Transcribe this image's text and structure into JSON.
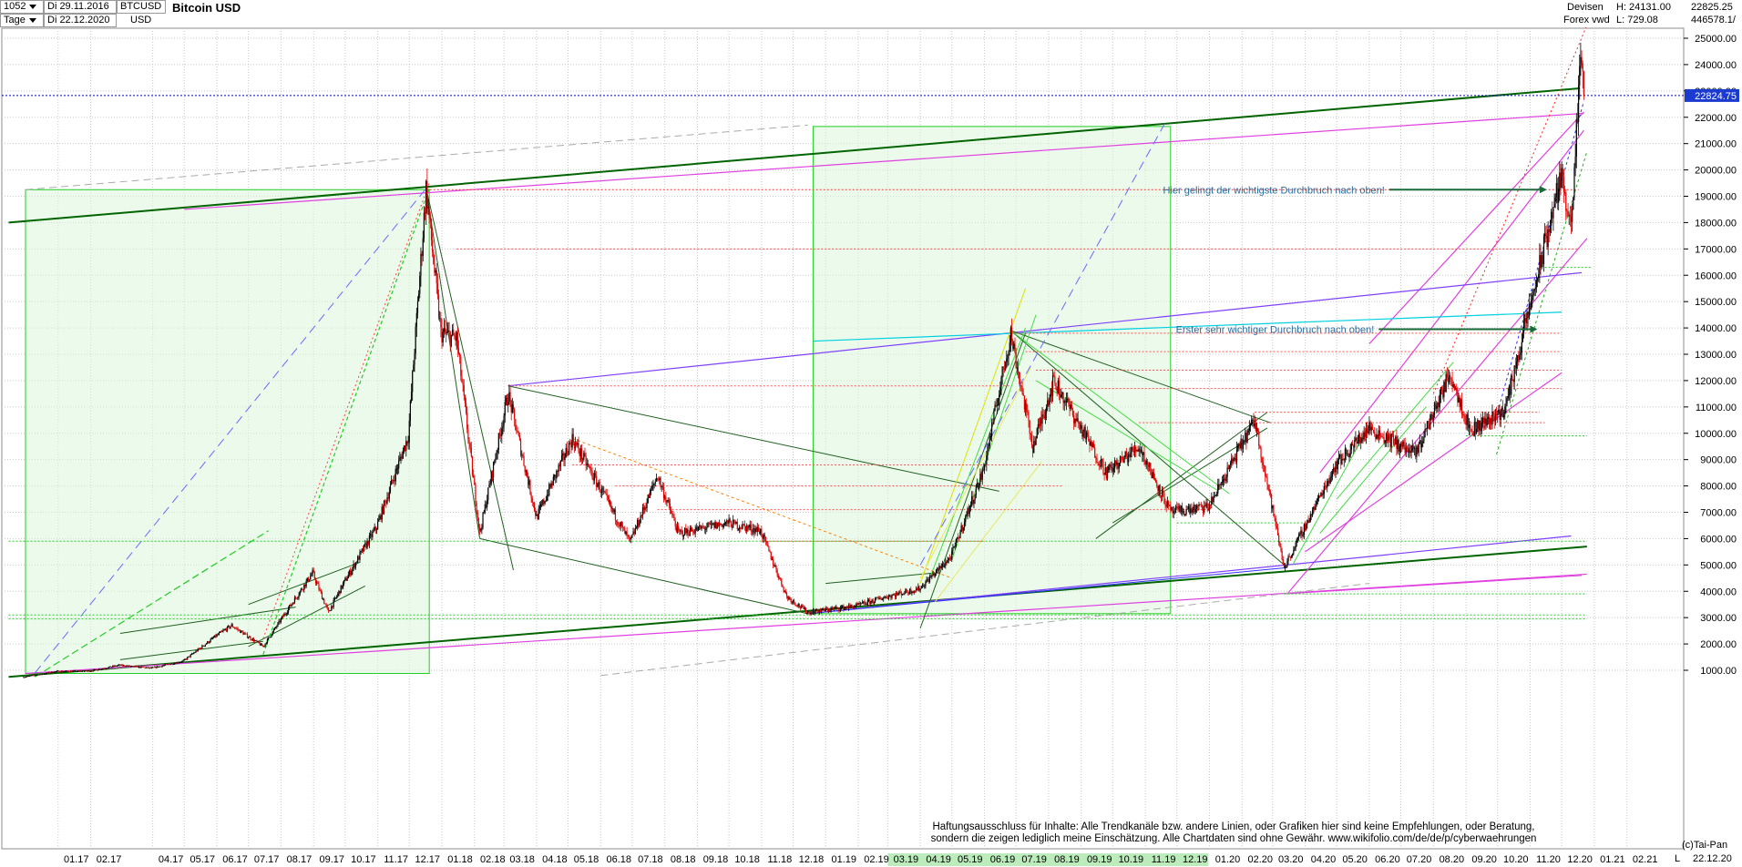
{
  "header": {
    "bars_count": "1052",
    "period": "Tage",
    "date_from": "Di 29.11.2016",
    "date_to": "Di 22.12.2020",
    "symbol": "BTCUSD",
    "currency": "USD",
    "title": "Bitcoin USD",
    "category": "Devisen",
    "exchange": "Forex vwd",
    "high": "H: 24131.00",
    "low": "L: 729.08",
    "last": "22825.25",
    "volume": "446578.1/"
  },
  "footer": {
    "copyright": "(c)Tai-Pan",
    "end_date": "22.12.20",
    "scale_mode": "L"
  },
  "colors": {
    "candle_up": "#000000",
    "candle_down": "#e00000",
    "grid": "#c8c8c8",
    "current_price_line": "#0000c8",
    "current_price_label_bg": "#1a3ad0"
  },
  "chart_data": {
    "type": "candlestick",
    "title": "Bitcoin USD",
    "x_type": "date",
    "ylim": [
      0,
      26000
    ],
    "y_scale": "linear",
    "y_axis_position": "right",
    "grid": true,
    "y_ticks": [
      "1000.00",
      "2000.00",
      "3000.00",
      "4000.00",
      "5000.00",
      "6000.00",
      "7000.00",
      "8000.00",
      "9000.00",
      "10000.00",
      "11000.00",
      "12000.00",
      "13000.00",
      "14000.00",
      "15000.00",
      "16000.00",
      "17000.00",
      "18000.00",
      "19000.00",
      "20000.00",
      "21000.00",
      "22000.00",
      "23000.00",
      "24000.00",
      "25000.00"
    ],
    "x_ticks": [
      "01.17",
      "02.17",
      "04.17",
      "05.17",
      "06.17",
      "07.17",
      "08.17",
      "09.17",
      "10.17",
      "11.17",
      "12.17",
      "01.18",
      "02.18",
      "03.18",
      "04.18",
      "05.18",
      "06.18",
      "07.18",
      "08.18",
      "09.18",
      "10.18",
      "11.18",
      "12.18",
      "01.19",
      "02.19",
      "03.19",
      "04.19",
      "05.19",
      "06.19",
      "07.19",
      "08.19",
      "09.19",
      "10.19",
      "11.19",
      "12.19",
      "01.20",
      "02.20",
      "03.20",
      "04.20",
      "05.20",
      "06.20",
      "07.20",
      "08.20",
      "09.20",
      "10.20",
      "11.20",
      "12.20",
      "01.21",
      "02.21"
    ],
    "current_price": 22824.75,
    "current_price_label": "22824.75",
    "price_path": [
      [
        "2016-11-29",
        740
      ],
      [
        "2016-12-31",
        960
      ],
      [
        "2017-01-31",
        970
      ],
      [
        "2017-02-28",
        1190
      ],
      [
        "2017-03-31",
        1080
      ],
      [
        "2017-04-30",
        1350
      ],
      [
        "2017-05-31",
        2300
      ],
      [
        "2017-06-15",
        2700
      ],
      [
        "2017-07-15",
        1900
      ],
      [
        "2017-07-31",
        2870
      ],
      [
        "2017-08-31",
        4700
      ],
      [
        "2017-09-15",
        3200
      ],
      [
        "2017-09-30",
        4340
      ],
      [
        "2017-10-31",
        6450
      ],
      [
        "2017-11-30",
        9900
      ],
      [
        "2017-12-17",
        19300
      ],
      [
        "2017-12-31",
        13800
      ],
      [
        "2018-01-15",
        13600
      ],
      [
        "2018-02-06",
        6200
      ],
      [
        "2018-03-05",
        11500
      ],
      [
        "2018-04-01",
        6800
      ],
      [
        "2018-05-05",
        9800
      ],
      [
        "2018-06-29",
        5850
      ],
      [
        "2018-07-25",
        8400
      ],
      [
        "2018-08-14",
        6200
      ],
      [
        "2018-09-30",
        6600
      ],
      [
        "2018-10-31",
        6300
      ],
      [
        "2018-11-25",
        3800
      ],
      [
        "2018-12-15",
        3200
      ],
      [
        "2019-01-31",
        3450
      ],
      [
        "2019-02-28",
        3800
      ],
      [
        "2019-03-31",
        4100
      ],
      [
        "2019-04-30",
        5300
      ],
      [
        "2019-05-31",
        8600
      ],
      [
        "2019-06-26",
        13800
      ],
      [
        "2019-07-17",
        9500
      ],
      [
        "2019-08-06",
        12000
      ],
      [
        "2019-09-25",
        8500
      ],
      [
        "2019-10-26",
        9500
      ],
      [
        "2019-11-25",
        7000
      ],
      [
        "2019-12-31",
        7200
      ],
      [
        "2020-02-13",
        10500
      ],
      [
        "2020-03-12",
        4900
      ],
      [
        "2020-03-31",
        6400
      ],
      [
        "2020-04-30",
        8800
      ],
      [
        "2020-06-01",
        10200
      ],
      [
        "2020-07-15",
        9200
      ],
      [
        "2020-08-17",
        12300
      ],
      [
        "2020-09-05",
        10100
      ],
      [
        "2020-10-08",
        10900
      ],
      [
        "2020-11-05",
        15500
      ],
      [
        "2020-11-30",
        19700
      ],
      [
        "2020-12-11",
        18000
      ],
      [
        "2020-12-17",
        23000
      ],
      [
        "2020-12-20",
        24131
      ],
      [
        "2020-12-22",
        22825
      ]
    ],
    "annotations": [
      {
        "text": "Hier gelingt der wichtigste Durchbruch nach oben!",
        "date": "2020-06-20",
        "price": 19250
      },
      {
        "text": "Erster sehr wichtiger Durchbruch nach oben!",
        "date": "2020-06-10",
        "price": 13950
      }
    ],
    "disclaimer": [
      "Haftungsausschluss für Inhalte: Alle Trendkanäle bzw. andere Linien, oder Grafiken hier sind keine Empfehlungen, oder Beratung,",
      "sondern die zeigen lediglich meine  Einschätzung. Alle Chartdaten sind ohne Gewähr.  www.wikifolio.com/de/de/p/cyberwaehrungen"
    ]
  }
}
